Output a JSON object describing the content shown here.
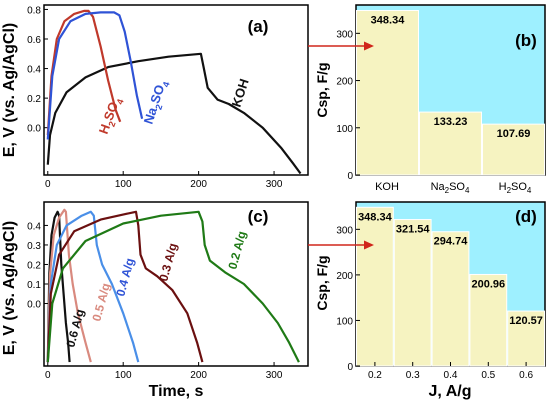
{
  "colors": {
    "black": "#111111",
    "red": "#c0392b",
    "blue": "#2f53d6",
    "brown": "#6b1010",
    "salmon": "#d98a7f",
    "lightblue": "#4a8fe8",
    "green": "#1f7a16",
    "cyan": "#9ef0ff",
    "bar": "#f6f3c1",
    "arrow": "#d0261b"
  },
  "chart_data": [
    {
      "type": "line",
      "panel_label": "(a)",
      "xlabel": "",
      "ylabel": "E, V (vs. Ag/AgCl)",
      "xlim": [
        -5,
        345
      ],
      "ylim": [
        -0.32,
        0.83
      ],
      "x_ticks": [
        "0",
        "100",
        "200",
        "300"
      ],
      "y_ticks": [
        "0.0",
        "0.2",
        "0.4",
        "0.6",
        "0.8"
      ],
      "series": [
        {
          "name": "KOH",
          "color": "#111111",
          "points": [
            [
              0,
              -0.25
            ],
            [
              3,
              -0.05
            ],
            [
              10,
              0.1
            ],
            [
              25,
              0.24
            ],
            [
              50,
              0.34
            ],
            [
              80,
              0.41
            ],
            [
              120,
              0.45
            ],
            [
              160,
              0.48
            ],
            [
              203,
              0.5
            ],
            [
              207,
              0.4
            ],
            [
              212,
              0.27
            ],
            [
              225,
              0.19
            ],
            [
              240,
              0.16
            ],
            [
              260,
              0.1
            ],
            [
              285,
              0.0
            ],
            [
              310,
              -0.14
            ],
            [
              325,
              -0.24
            ],
            [
              335,
              -0.31
            ]
          ]
        },
        {
          "name": "H2SO4",
          "color": "#c0392b",
          "points": [
            [
              0,
              -0.05
            ],
            [
              5,
              0.35
            ],
            [
              12,
              0.6
            ],
            [
              22,
              0.72
            ],
            [
              35,
              0.77
            ],
            [
              48,
              0.79
            ],
            [
              54,
              0.79
            ],
            [
              60,
              0.75
            ],
            [
              70,
              0.55
            ],
            [
              80,
              0.32
            ],
            [
              90,
              0.12
            ],
            [
              96,
              0.04
            ]
          ]
        },
        {
          "name": "Na2SO4",
          "color": "#2f53d6",
          "points": [
            [
              0,
              -0.08
            ],
            [
              6,
              0.35
            ],
            [
              15,
              0.6
            ],
            [
              30,
              0.72
            ],
            [
              50,
              0.77
            ],
            [
              70,
              0.78
            ],
            [
              88,
              0.78
            ],
            [
              95,
              0.76
            ],
            [
              102,
              0.65
            ],
            [
              110,
              0.45
            ],
            [
              118,
              0.22
            ],
            [
              125,
              0.06
            ]
          ]
        }
      ],
      "annotations": [
        "H2SO4",
        "Na2SO4",
        "KOH"
      ]
    },
    {
      "type": "bar",
      "panel_label": "(b)",
      "xlabel": "",
      "ylabel": "Csp, F/g",
      "ylim": [
        0,
        360
      ],
      "y_ticks": [
        "0",
        "100",
        "200",
        "300"
      ],
      "categories": [
        "KOH",
        "Na2SO4",
        "H2SO4"
      ],
      "values": [
        348.34,
        133.23,
        107.69
      ],
      "data_labels": [
        "348.34",
        "133.23",
        "107.69"
      ]
    },
    {
      "type": "line",
      "panel_label": "(c)",
      "xlabel": "Time, s",
      "ylabel": "E, V (vs. Ag/AgCl)",
      "xlim": [
        -5,
        345
      ],
      "ylim": [
        -0.32,
        0.52
      ],
      "x_ticks": [
        "0",
        "100",
        "200",
        "300"
      ],
      "y_ticks": [
        "0.0",
        "0.1",
        "0.2",
        "0.3",
        "0.4"
      ],
      "series": [
        {
          "name": "0.6 A/g",
          "color": "#111111",
          "points": [
            [
              0,
              -0.3
            ],
            [
              2,
              0.15
            ],
            [
              5,
              0.35
            ],
            [
              9,
              0.44
            ],
            [
              13,
              0.47
            ],
            [
              15,
              0.45
            ],
            [
              18,
              0.2
            ],
            [
              21,
              0.05
            ],
            [
              24,
              -0.1
            ],
            [
              27,
              -0.2
            ],
            [
              29,
              -0.3
            ]
          ]
        },
        {
          "name": "0.5 A/g",
          "color": "#d98a7f",
          "points": [
            [
              0,
              -0.3
            ],
            [
              3,
              0.15
            ],
            [
              8,
              0.35
            ],
            [
              15,
              0.44
            ],
            [
              22,
              0.48
            ],
            [
              24,
              0.47
            ],
            [
              28,
              0.25
            ],
            [
              33,
              0.1
            ],
            [
              40,
              -0.05
            ],
            [
              50,
              -0.2
            ],
            [
              57,
              -0.3
            ]
          ]
        },
        {
          "name": "0.4 A/g",
          "color": "#4a8fe8",
          "points": [
            [
              0,
              -0.3
            ],
            [
              4,
              0.1
            ],
            [
              12,
              0.3
            ],
            [
              25,
              0.4
            ],
            [
              45,
              0.45
            ],
            [
              57,
              0.47
            ],
            [
              61,
              0.45
            ],
            [
              65,
              0.3
            ],
            [
              72,
              0.2
            ],
            [
              85,
              0.1
            ],
            [
              100,
              -0.05
            ],
            [
              113,
              -0.2
            ],
            [
              120,
              -0.3
            ]
          ]
        },
        {
          "name": "0.3 A/g",
          "color": "#6b1010",
          "points": [
            [
              0,
              -0.3
            ],
            [
              4,
              0.05
            ],
            [
              15,
              0.25
            ],
            [
              35,
              0.37
            ],
            [
              70,
              0.43
            ],
            [
              105,
              0.46
            ],
            [
              117,
              0.47
            ],
            [
              120,
              0.4
            ],
            [
              123,
              0.25
            ],
            [
              130,
              0.18
            ],
            [
              145,
              0.14
            ],
            [
              165,
              0.07
            ],
            [
              185,
              -0.05
            ],
            [
              198,
              -0.2
            ],
            [
              205,
              -0.3
            ]
          ]
        },
        {
          "name": "0.2 A/g",
          "color": "#1f7a16",
          "points": [
            [
              0,
              -0.3
            ],
            [
              6,
              0.0
            ],
            [
              20,
              0.18
            ],
            [
              50,
              0.32
            ],
            [
              100,
              0.41
            ],
            [
              150,
              0.45
            ],
            [
              200,
              0.47
            ],
            [
              205,
              0.42
            ],
            [
              208,
              0.3
            ],
            [
              215,
              0.22
            ],
            [
              235,
              0.16
            ],
            [
              260,
              0.1
            ],
            [
              285,
              0.0
            ],
            [
              305,
              -0.1
            ],
            [
              320,
              -0.2
            ],
            [
              333,
              -0.3
            ]
          ]
        }
      ],
      "annotations": [
        "0.6 A/g",
        "0.5 A/g",
        "0.4 A/g",
        "0.3 A/g",
        "0.2 A/g"
      ]
    },
    {
      "type": "bar",
      "panel_label": "(d)",
      "xlabel": "J, A/g",
      "ylabel": "Csp, F/g",
      "ylim": [
        0,
        360
      ],
      "y_ticks": [
        "0",
        "100",
        "200",
        "300"
      ],
      "categories": [
        "0.2",
        "0.3",
        "0.4",
        "0.5",
        "0.6"
      ],
      "values": [
        348.34,
        321.54,
        294.74,
        200.96,
        120.57
      ],
      "data_labels": [
        "348.34",
        "321.54",
        "294.74",
        "200.96",
        "120.57"
      ]
    }
  ]
}
